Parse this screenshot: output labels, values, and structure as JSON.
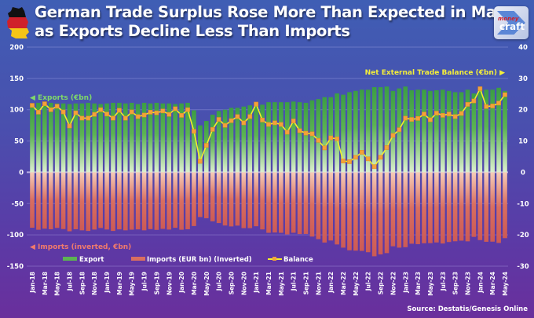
{
  "title_line1": "German Trade Surplus Rose More Than Expected in May",
  "title_line2": "as Exports Decline Less Than Imports",
  "logo": {
    "text_top": "money",
    "text_main": "craft"
  },
  "icons": {
    "flag": "germany-flag-map-icon",
    "logo": "moneycraft-logo"
  },
  "source": "Source: Destatis/Genesis Online",
  "colors": {
    "export": "#3fa046",
    "import": "#d0605a",
    "balance_line": "#f2ee2a",
    "balance_marker": "#f3a23a",
    "exports_annotation": "#7fd86a",
    "imports_annotation": "#f07a6c",
    "balance_annotation": "#f4ee3a"
  },
  "chart_data": {
    "type": "bar+line",
    "title": "German Trade Surplus Rose More Than Expected in May as Exports Decline Less Than Imports",
    "annotations": {
      "exports": "◀ Exports (€bn)",
      "imports": "◀ Imports (inverted, €bn)",
      "balance": "Net External Trade Balance (€bn) ▶"
    },
    "legend": [
      "Export",
      "Imports (EUR bn) (Inverted)",
      "Balance"
    ],
    "legend_position": "bottom",
    "grid": true,
    "left_axis": {
      "range": [
        -150,
        200
      ],
      "ticks": [
        "200",
        "150",
        "100",
        "50",
        "0",
        "-50",
        "-100",
        "-150"
      ]
    },
    "right_axis": {
      "range": [
        -30,
        40
      ],
      "ticks": [
        "40",
        "30",
        "20",
        "10",
        "0",
        "-10",
        "-20",
        "-30"
      ]
    },
    "x_tick_labels": [
      "Jan-18",
      "Mar-18",
      "May-18",
      "Jul-18",
      "Sep-18",
      "Nov-18",
      "Jan-19",
      "Mar-19",
      "May-19",
      "Jul-19",
      "Sep-19",
      "Nov-19",
      "Jan-20",
      "Mar-20",
      "May-20",
      "Jul-20",
      "Sep-20",
      "Nov-20",
      "Jan-21",
      "Mar-21",
      "May-21",
      "Jul-21",
      "Sep-21",
      "Nov-21",
      "Jan-22",
      "Mar-22",
      "May-22",
      "Jul-22",
      "Sep-22",
      "Nov-22",
      "Jan-23",
      "Mar-23",
      "May-23",
      "Jul-23",
      "Sep-23",
      "Nov-23",
      "Jan-24",
      "Mar-24",
      "May-24"
    ],
    "series": [
      {
        "name": "Export",
        "axis": "left",
        "kind": "bar",
        "values": [
          110,
          111,
          112,
          111,
          110,
          110,
          109,
          110,
          110,
          111,
          110,
          109,
          110,
          111,
          111,
          110,
          111,
          109,
          111,
          110,
          111,
          110,
          110,
          109,
          110,
          111,
          99,
          75,
          82,
          92,
          98,
          100,
          103,
          103,
          105,
          107,
          108,
          108,
          112,
          112,
          112,
          112,
          113,
          112,
          111,
          115,
          117,
          120,
          120,
          126,
          124,
          128,
          130,
          132,
          132,
          136,
          136,
          137,
          130,
          134,
          137,
          131,
          132,
          132,
          130,
          131,
          132,
          130,
          128,
          128,
          132,
          126,
          135,
          132,
          132,
          135,
          130
        ]
      },
      {
        "name": "Imports (EUR bn) (Inverted)",
        "axis": "left",
        "kind": "bar-inverted",
        "values": [
          88.6,
          91.8,
          90.1,
          91,
          88.9,
          90.7,
          94.2,
          91,
          92.7,
          93.7,
          91.5,
          89,
          91.4,
          93.7,
          91.2,
          92.7,
          91.7,
          91.2,
          92.7,
          90.8,
          92,
          90.4,
          91.5,
          88.7,
          91.8,
          91,
          85.9,
          71.5,
          73.4,
          78.3,
          81.1,
          85,
          86.5,
          85.2,
          89.2,
          89.2,
          86.2,
          91.3,
          96.7,
          96.2,
          96.7,
          99.2,
          96.6,
          98.7,
          98.5,
          102.7,
          106.8,
          112.2,
          109,
          115.3,
          120.4,
          124.6,
          125.2,
          125.6,
          127.7,
          134.2,
          131.2,
          129.1,
          118.2,
          120.4,
          119.7,
          114.1,
          114.8,
          113.4,
          113.2,
          112.1,
          113.8,
          111.4,
          110.2,
          109.2,
          110.3,
          103.2,
          108.3,
          111,
          110.8,
          112.9,
          105.2
        ]
      },
      {
        "name": "Balance",
        "axis": "right",
        "kind": "line",
        "values": [
          21.4,
          19.2,
          21.9,
          20,
          21.1,
          19.3,
          14.8,
          19,
          17.3,
          17.3,
          18.5,
          20,
          18.6,
          17.3,
          19.8,
          17.3,
          19.3,
          17.8,
          18.3,
          19.2,
          19,
          19.6,
          18.5,
          20.3,
          18.2,
          20,
          13.1,
          3.5,
          8.6,
          13.7,
          16.9,
          15,
          16.5,
          17.8,
          15.8,
          17.8,
          21.8,
          16.7,
          15.3,
          15.8,
          15.3,
          12.8,
          16.4,
          13.3,
          12.5,
          12.3,
          10.2,
          7.8,
          11,
          10.7,
          3.6,
          3.4,
          4.8,
          6.4,
          4.3,
          1.8,
          4.8,
          7.9,
          11.8,
          13.6,
          17.3,
          16.9,
          17.2,
          18.6,
          16.8,
          18.9,
          18.2,
          18.6,
          17.8,
          18.8,
          21.7,
          22.8,
          26.7,
          21,
          21.2,
          22.1,
          24.8
        ]
      }
    ]
  }
}
